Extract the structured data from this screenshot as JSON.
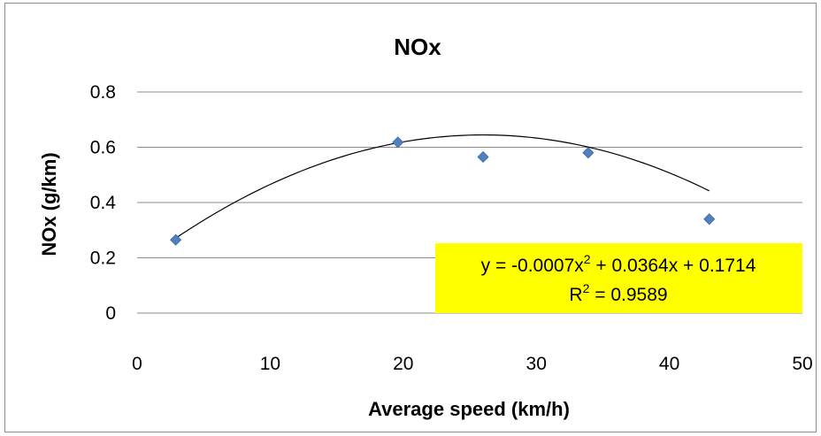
{
  "chart_data": {
    "type": "scatter",
    "title": "NOx",
    "xlabel": "Average speed (km/h)",
    "ylabel": "NOx (g/km)",
    "xlim": [
      0,
      50
    ],
    "ylim": [
      0,
      0.8
    ],
    "xticks": [
      "0",
      "10",
      "20",
      "30",
      "40",
      "50"
    ],
    "yticks": [
      "0",
      "0.2",
      "0.4",
      "0.6",
      "0.8"
    ],
    "grid": "horizontal",
    "legend": "none",
    "series": [
      {
        "x": [
          2.9,
          19.6,
          26.0,
          33.9,
          43.0
        ],
        "y": [
          0.265,
          0.618,
          0.565,
          0.58,
          0.34
        ],
        "marker": "diamond",
        "color": "#4f81bd"
      }
    ],
    "trendline": {
      "type": "polynomial",
      "order": 2,
      "coefficients": [
        -0.0007,
        0.0364,
        0.1714
      ],
      "x_range": [
        2.9,
        43.0
      ],
      "color": "#000000"
    },
    "annotation": {
      "equation_prefix": "y = -0.0007x",
      "equation_exp": "2",
      "equation_suffix": " + 0.0364x + 0.1714",
      "r2_prefix": "R",
      "r2_exp": "2",
      "r2_suffix": " = 0.9589",
      "background": "#ffff00"
    }
  }
}
